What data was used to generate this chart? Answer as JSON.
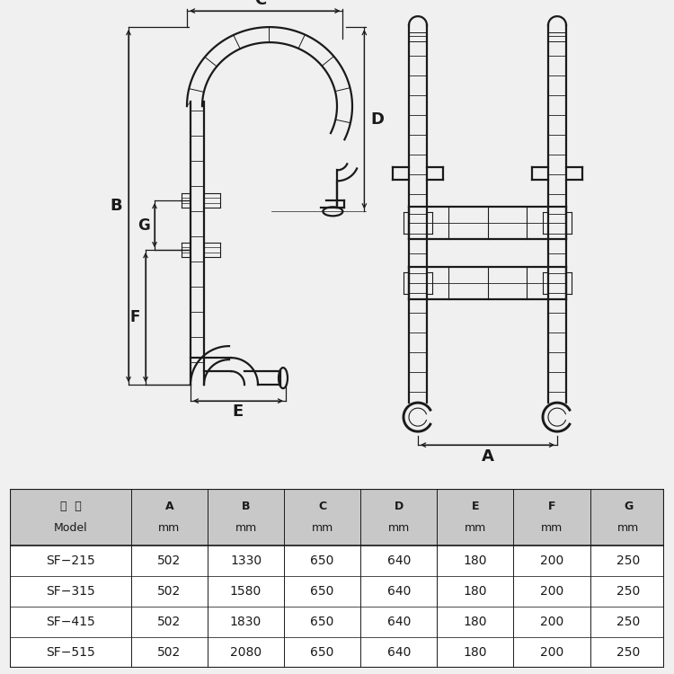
{
  "bg_color": "#f0f0f0",
  "white": "#ffffff",
  "black": "#1a1a1a",
  "gray_header": "#c8c8c8",
  "line_color": "#1a1a1a",
  "table_headers_line1": [
    "型  号",
    "A",
    "B",
    "C",
    "D",
    "E",
    "F",
    "G"
  ],
  "table_headers_line2": [
    "Model",
    "mm",
    "mm",
    "mm",
    "mm",
    "mm",
    "mm",
    "mm"
  ],
  "table_rows": [
    [
      "SF−215",
      "502",
      "1330",
      "650",
      "640",
      "180",
      "200",
      "250"
    ],
    [
      "SF−315",
      "502",
      "1580",
      "650",
      "640",
      "180",
      "200",
      "250"
    ],
    [
      "SF−415",
      "502",
      "1830",
      "650",
      "640",
      "180",
      "200",
      "250"
    ],
    [
      "SF−515",
      "502",
      "2080",
      "650",
      "640",
      "180",
      "200",
      "250"
    ]
  ]
}
